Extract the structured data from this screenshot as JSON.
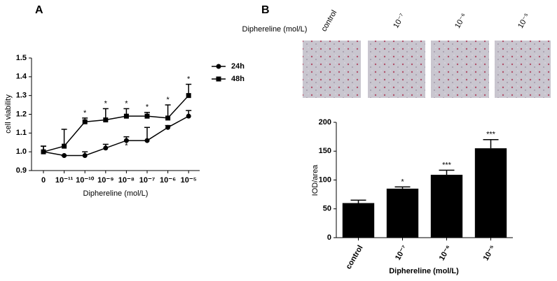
{
  "chart_data": [
    {
      "type": "line",
      "panel_label": "A",
      "x_label": "Diphereline (mol/L)",
      "y_label": "cell viability",
      "categories": [
        "0",
        "10⁻¹¹",
        "10⁻¹⁰",
        "10⁻⁹",
        "10⁻⁸",
        "10⁻⁷",
        "10⁻⁶",
        "10⁻⁵"
      ],
      "ylim": [
        0.9,
        1.5
      ],
      "yticks": [
        0.9,
        {
          "value": 1,
          "label": "1.0"
        },
        1.1,
        1.2,
        1.3,
        1.4,
        1.5
      ],
      "legend": "right",
      "series": [
        {
          "name": "24h",
          "color": "#000",
          "marker": "circle",
          "values": [
            1.0,
            0.98,
            0.98,
            1.02,
            1.06,
            1.06,
            1.13,
            1.19
          ],
          "errors": [
            0.03,
            0,
            0.02,
            0.02,
            0.02,
            0.07,
            0.01,
            0.03
          ],
          "marks": [
            null,
            null,
            null,
            null,
            "*",
            null,
            null,
            null
          ]
        },
        {
          "name": "48h",
          "color": "#000",
          "marker": "square",
          "values": [
            1.0,
            1.03,
            1.16,
            1.17,
            1.19,
            1.19,
            1.18,
            1.3
          ],
          "errors": [
            0.03,
            0.09,
            0.02,
            0.06,
            0.04,
            0.02,
            0.07,
            0.06
          ],
          "marks": [
            null,
            null,
            "*",
            "*",
            "*",
            "*",
            "*",
            "*"
          ]
        }
      ]
    },
    {
      "type": "bar",
      "panel_label": "B",
      "image_label": "Diphereline (mol/L)",
      "image_captions": [
        "control",
        "10⁻⁷",
        "10⁻⁶",
        "10⁻⁵"
      ],
      "x_label": "Diphereline (mol/L)",
      "y_label": "IOD/area",
      "categories": [
        "control",
        "10⁻⁷",
        "10⁻⁶",
        "10⁻⁵"
      ],
      "values": [
        60,
        85,
        109,
        155
      ],
      "errors": [
        5,
        3,
        8,
        15
      ],
      "marks": [
        null,
        "*",
        "***",
        "***"
      ],
      "color": "#000",
      "ylim": [
        0,
        200
      ],
      "yticks": [
        0,
        50,
        100,
        150,
        200
      ]
    }
  ]
}
